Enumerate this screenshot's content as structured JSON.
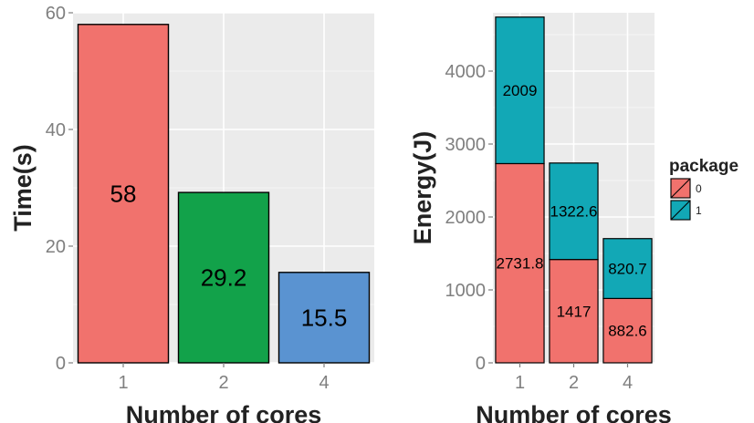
{
  "chart_data": [
    {
      "type": "bar",
      "categories": [
        "1",
        "2",
        "4"
      ],
      "values": [
        58,
        29.2,
        15.5
      ],
      "value_labels": [
        "58",
        "29.2",
        "15.5"
      ],
      "colors": [
        "#f1726d",
        "#12a24a",
        "#5a93d1"
      ],
      "xlabel": "Number of cores",
      "ylabel": "Time(s)",
      "ylim": [
        0,
        60
      ],
      "yticks": [
        0,
        20,
        40,
        60
      ],
      "grid": true
    },
    {
      "type": "bar",
      "stacked": true,
      "categories": [
        "1",
        "2",
        "4"
      ],
      "series": [
        {
          "name": "0",
          "values": [
            2731.8,
            1417,
            882.6
          ],
          "labels": [
            "2731.8",
            "1417",
            "882.6"
          ],
          "color": "#f1726d"
        },
        {
          "name": "1",
          "values": [
            2009,
            1322.6,
            820.7
          ],
          "labels": [
            "2009",
            "1322.6",
            "820.7"
          ],
          "color": "#12a8b6"
        }
      ],
      "xlabel": "Number of cores",
      "ylabel": "Energy(J)",
      "ylim": [
        0,
        4800
      ],
      "yticks": [
        0,
        1000,
        2000,
        3000,
        4000
      ],
      "legend": {
        "title": "package",
        "placement": "right"
      },
      "grid": true
    }
  ]
}
